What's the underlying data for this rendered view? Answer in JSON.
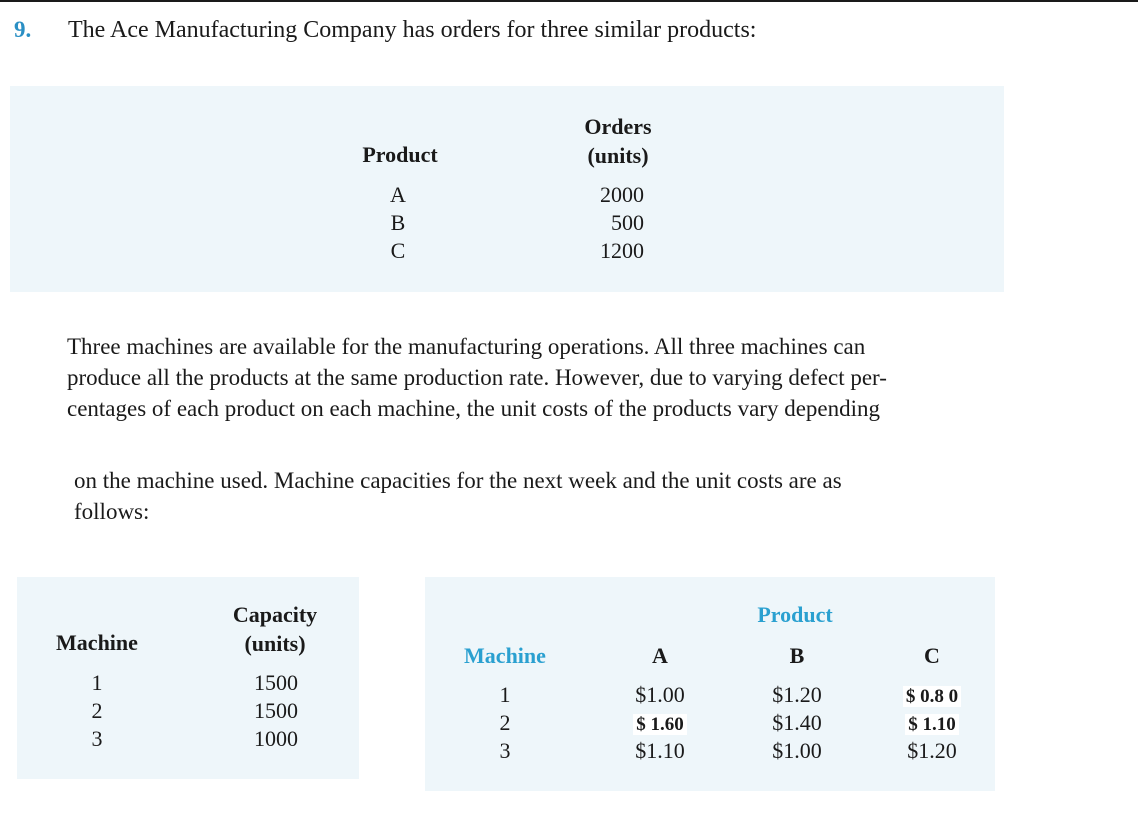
{
  "problem": {
    "number": "9.",
    "intro": "The Ace Manufacturing Company has orders for three similar products:"
  },
  "orders_table": {
    "col_product": "Product",
    "col_orders_line1": "Orders",
    "col_orders_line2": "(units)",
    "rows": [
      {
        "product": "A",
        "orders": "2000"
      },
      {
        "product": "B",
        "orders": "500"
      },
      {
        "product": "C",
        "orders": "1200"
      }
    ]
  },
  "paragraph1": {
    "lines": [
      "Three machines are available for the manufacturing operations. All three machines can",
      "produce all the products at the same production rate. However, due to varying defect per-",
      "centages of each product on each machine, the unit costs of the products vary depending"
    ]
  },
  "paragraph2": {
    "lines": [
      "on the machine used. Machine capacities for the next week and the unit costs are as",
      "follows:"
    ]
  },
  "capacity_table": {
    "col_machine": "Machine",
    "col_capacity_line1": "Capacity",
    "col_capacity_line2": "(units)",
    "rows": [
      {
        "machine": "1",
        "capacity": "1500"
      },
      {
        "machine": "2",
        "capacity": "1500"
      },
      {
        "machine": "3",
        "capacity": "1000"
      }
    ]
  },
  "cost_table": {
    "group_header": "Product",
    "col_machine": "Machine",
    "col_a": "A",
    "col_b": "B",
    "col_c": "C",
    "rows": [
      {
        "machine": "1",
        "a": "$1.00",
        "b": "$1.20",
        "c": "$ 0.8 0"
      },
      {
        "machine": "2",
        "a": "$ 1.60",
        "b": "$1.40",
        "c": "$ 1.10"
      },
      {
        "machine": "3",
        "a": "$1.10",
        "b": "$1.00",
        "c": "$1.20"
      }
    ]
  },
  "colors": {
    "accent": "#2aa0d0",
    "box_background": "#eef6fa",
    "text": "#1a1a1a"
  }
}
